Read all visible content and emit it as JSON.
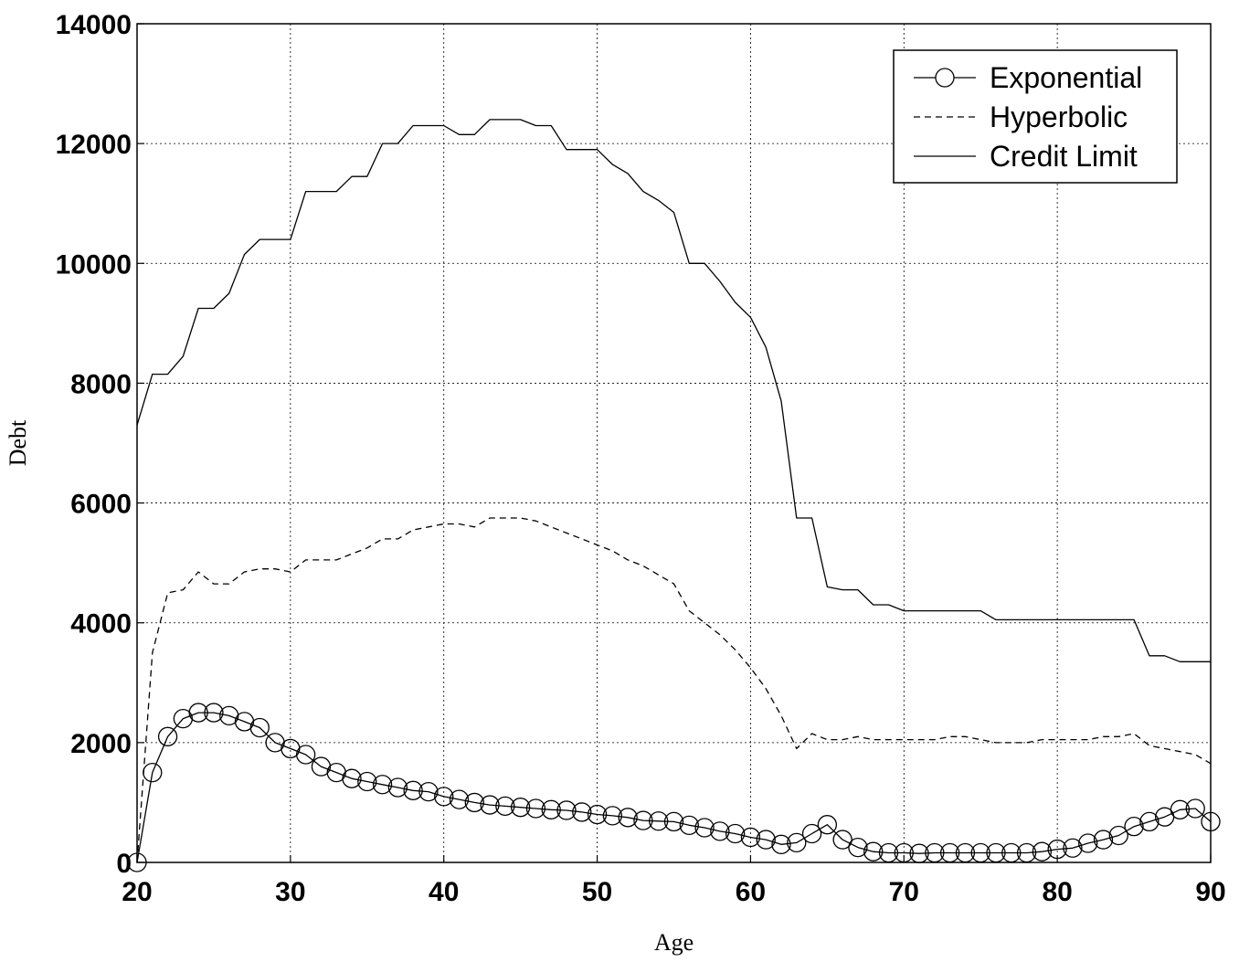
{
  "chart_data": {
    "type": "line",
    "xlabel": "Age",
    "ylabel": "Debt",
    "xlim": [
      20,
      90
    ],
    "ylim": [
      0,
      14000
    ],
    "xticks": [
      "20",
      "30",
      "40",
      "50",
      "60",
      "70",
      "80",
      "90"
    ],
    "yticks": [
      "0",
      "2000",
      "4000",
      "6000",
      "8000",
      "10000",
      "12000",
      "14000"
    ],
    "grid": true,
    "legend_position": "top-right",
    "series": [
      {
        "name": "Exponential",
        "style": "solid-circle-markers",
        "x": [
          20,
          21,
          22,
          23,
          24,
          25,
          26,
          27,
          28,
          29,
          30,
          31,
          32,
          33,
          34,
          35,
          36,
          37,
          38,
          39,
          40,
          41,
          42,
          43,
          44,
          45,
          46,
          47,
          48,
          49,
          50,
          51,
          52,
          53,
          54,
          55,
          56,
          57,
          58,
          59,
          60,
          61,
          62,
          63,
          64,
          65,
          66,
          67,
          68,
          69,
          70,
          71,
          72,
          73,
          74,
          75,
          76,
          77,
          78,
          79,
          80,
          81,
          82,
          83,
          84,
          85,
          86,
          87,
          88,
          89,
          90
        ],
        "y": [
          0,
          1500,
          2100,
          2400,
          2500,
          2500,
          2450,
          2350,
          2250,
          2000,
          1900,
          1800,
          1600,
          1500,
          1400,
          1350,
          1300,
          1250,
          1200,
          1180,
          1100,
          1050,
          1000,
          960,
          940,
          920,
          900,
          880,
          870,
          840,
          800,
          780,
          750,
          700,
          690,
          680,
          620,
          580,
          520,
          480,
          420,
          380,
          300,
          330,
          480,
          630,
          380,
          250,
          180,
          160,
          160,
          150,
          160,
          160,
          160,
          160,
          160,
          160,
          160,
          180,
          220,
          240,
          320,
          380,
          450,
          600,
          680,
          760,
          880,
          900,
          680
        ]
      },
      {
        "name": "Hyperbolic",
        "style": "dashed",
        "x": [
          20,
          21,
          22,
          23,
          24,
          25,
          26,
          27,
          28,
          29,
          30,
          31,
          32,
          33,
          34,
          35,
          36,
          37,
          38,
          39,
          40,
          41,
          42,
          43,
          44,
          45,
          46,
          47,
          48,
          49,
          50,
          51,
          52,
          53,
          54,
          55,
          56,
          57,
          58,
          59,
          60,
          61,
          62,
          63,
          64,
          65,
          66,
          67,
          68,
          69,
          70,
          71,
          72,
          73,
          74,
          75,
          76,
          77,
          78,
          79,
          80,
          81,
          82,
          83,
          84,
          85,
          86,
          87,
          88,
          89,
          90
        ],
        "y": [
          0,
          3500,
          4500,
          4550,
          4850,
          4650,
          4650,
          4850,
          4900,
          4900,
          4850,
          5050,
          5050,
          5050,
          5150,
          5250,
          5400,
          5400,
          5550,
          5600,
          5650,
          5650,
          5600,
          5750,
          5750,
          5750,
          5700,
          5600,
          5500,
          5400,
          5300,
          5200,
          5050,
          4950,
          4800,
          4650,
          4200,
          4000,
          3800,
          3550,
          3250,
          2900,
          2450,
          1900,
          2150,
          2050,
          2050,
          2100,
          2050,
          2050,
          2050,
          2050,
          2050,
          2100,
          2100,
          2050,
          2000,
          2000,
          2000,
          2050,
          2050,
          2050,
          2050,
          2100,
          2100,
          2150,
          1950,
          1900,
          1850,
          1800,
          1650
        ]
      },
      {
        "name": "Credit Limit",
        "style": "solid",
        "x": [
          20,
          21,
          22,
          23,
          24,
          25,
          26,
          27,
          28,
          29,
          30,
          31,
          32,
          33,
          34,
          35,
          36,
          37,
          38,
          39,
          40,
          41,
          42,
          43,
          44,
          45,
          46,
          47,
          48,
          49,
          50,
          51,
          52,
          53,
          54,
          55,
          56,
          57,
          58,
          59,
          60,
          61,
          62,
          63,
          64,
          65,
          66,
          67,
          68,
          69,
          70,
          71,
          72,
          73,
          74,
          75,
          76,
          77,
          78,
          79,
          80,
          81,
          82,
          83,
          84,
          85,
          86,
          87,
          88,
          89,
          90
        ],
        "y": [
          7300,
          8150,
          8150,
          8450,
          9250,
          9250,
          9500,
          10150,
          10400,
          10400,
          10400,
          11200,
          11200,
          11200,
          11450,
          11450,
          12000,
          12000,
          12300,
          12300,
          12300,
          12150,
          12150,
          12400,
          12400,
          12400,
          12300,
          12300,
          11900,
          11900,
          11900,
          11650,
          11500,
          11200,
          11050,
          10850,
          10000,
          10000,
          9700,
          9350,
          9100,
          8600,
          7700,
          5750,
          5750,
          4600,
          4550,
          4550,
          4300,
          4300,
          4200,
          4200,
          4200,
          4200,
          4200,
          4200,
          4050,
          4050,
          4050,
          4050,
          4050,
          4050,
          4050,
          4050,
          4050,
          4050,
          3450,
          3450,
          3350,
          3350,
          3350
        ]
      }
    ]
  }
}
